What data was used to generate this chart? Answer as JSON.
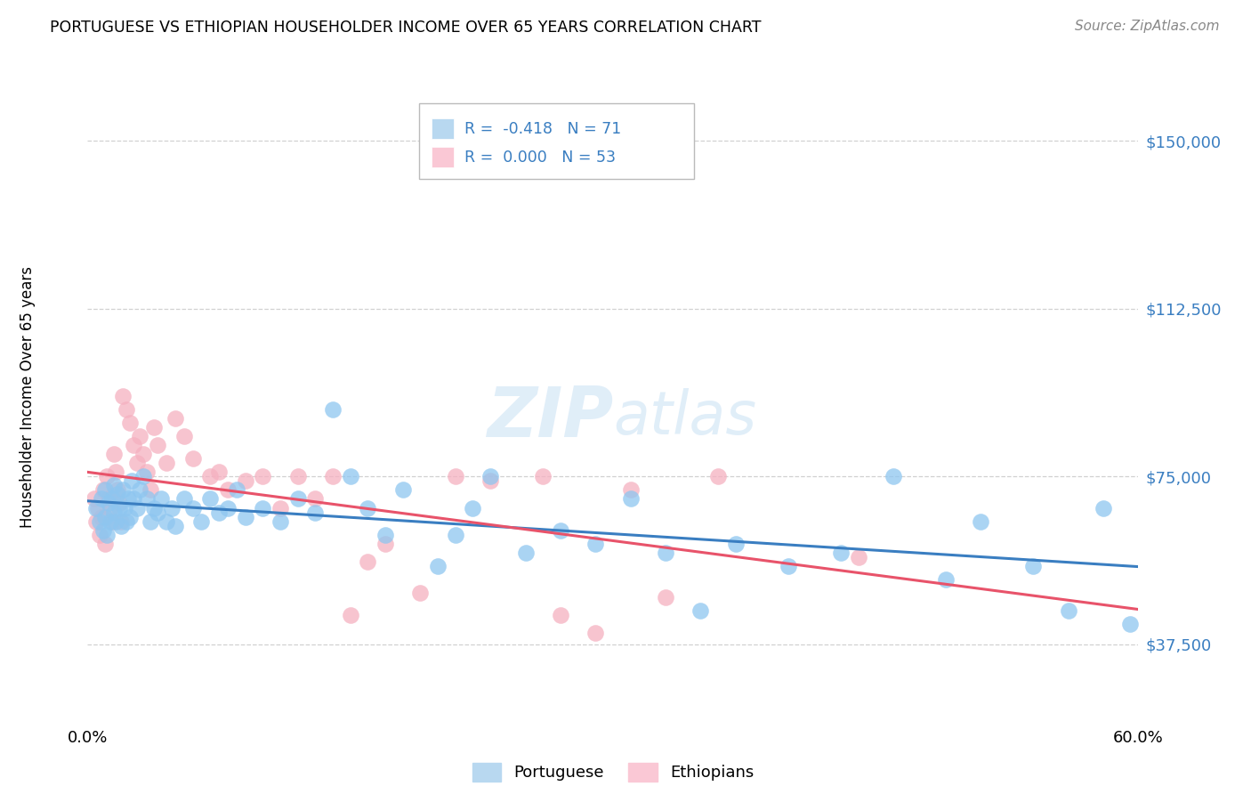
{
  "title": "PORTUGUESE VS ETHIOPIAN HOUSEHOLDER INCOME OVER 65 YEARS CORRELATION CHART",
  "source": "Source: ZipAtlas.com",
  "ylabel": "Householder Income Over 65 years",
  "ytick_labels": [
    "$37,500",
    "$75,000",
    "$112,500",
    "$150,000"
  ],
  "ytick_values": [
    37500,
    75000,
    112500,
    150000
  ],
  "ymin": 20000,
  "ymax": 162000,
  "xmin": 0.0,
  "xmax": 0.6,
  "portuguese_R": -0.418,
  "portuguese_N": 71,
  "ethiopians_R": 0.0,
  "ethiopians_N": 53,
  "portuguese_color": "#8EC6F0",
  "ethiopians_color": "#F5B0C0",
  "portuguese_line_color": "#3A7EC1",
  "ethiopians_line_color": "#E8536A",
  "background_color": "#FFFFFF",
  "grid_color": "#CCCCCC",
  "legend_box_color_portuguese": "#B8D8F0",
  "legend_box_color_ethiopians": "#FAC8D5",
  "portuguese_x": [
    0.005,
    0.007,
    0.008,
    0.009,
    0.01,
    0.01,
    0.011,
    0.012,
    0.013,
    0.014,
    0.015,
    0.015,
    0.016,
    0.017,
    0.018,
    0.019,
    0.02,
    0.021,
    0.022,
    0.023,
    0.024,
    0.025,
    0.026,
    0.028,
    0.03,
    0.032,
    0.034,
    0.036,
    0.038,
    0.04,
    0.042,
    0.045,
    0.048,
    0.05,
    0.055,
    0.06,
    0.065,
    0.07,
    0.075,
    0.08,
    0.085,
    0.09,
    0.1,
    0.11,
    0.12,
    0.13,
    0.14,
    0.15,
    0.16,
    0.17,
    0.18,
    0.2,
    0.21,
    0.22,
    0.23,
    0.25,
    0.27,
    0.29,
    0.31,
    0.33,
    0.35,
    0.37,
    0.4,
    0.43,
    0.46,
    0.49,
    0.51,
    0.54,
    0.56,
    0.58,
    0.595
  ],
  "portuguese_y": [
    68000,
    65000,
    70000,
    63000,
    72000,
    66000,
    62000,
    69000,
    65000,
    70000,
    67000,
    73000,
    65000,
    71000,
    68000,
    64000,
    72000,
    68000,
    65000,
    70000,
    66000,
    74000,
    70000,
    68000,
    72000,
    75000,
    70000,
    65000,
    68000,
    67000,
    70000,
    65000,
    68000,
    64000,
    70000,
    68000,
    65000,
    70000,
    67000,
    68000,
    72000,
    66000,
    68000,
    65000,
    70000,
    67000,
    90000,
    75000,
    68000,
    62000,
    72000,
    55000,
    62000,
    68000,
    75000,
    58000,
    63000,
    60000,
    70000,
    58000,
    45000,
    60000,
    55000,
    58000,
    75000,
    52000,
    65000,
    55000,
    45000,
    68000,
    42000
  ],
  "ethiopians_x": [
    0.004,
    0.005,
    0.006,
    0.007,
    0.008,
    0.009,
    0.01,
    0.011,
    0.012,
    0.013,
    0.014,
    0.015,
    0.016,
    0.017,
    0.018,
    0.019,
    0.02,
    0.022,
    0.024,
    0.026,
    0.028,
    0.03,
    0.032,
    0.034,
    0.036,
    0.038,
    0.04,
    0.045,
    0.05,
    0.055,
    0.06,
    0.07,
    0.075,
    0.08,
    0.09,
    0.1,
    0.11,
    0.12,
    0.13,
    0.14,
    0.15,
    0.16,
    0.17,
    0.19,
    0.21,
    0.23,
    0.26,
    0.27,
    0.29,
    0.31,
    0.33,
    0.36,
    0.44
  ],
  "ethiopians_y": [
    70000,
    65000,
    68000,
    62000,
    66000,
    72000,
    60000,
    75000,
    70000,
    68000,
    65000,
    80000,
    76000,
    72000,
    69000,
    65000,
    93000,
    90000,
    87000,
    82000,
    78000,
    84000,
    80000,
    76000,
    72000,
    86000,
    82000,
    78000,
    88000,
    84000,
    79000,
    75000,
    76000,
    72000,
    74000,
    75000,
    68000,
    75000,
    70000,
    75000,
    44000,
    56000,
    60000,
    49000,
    75000,
    74000,
    75000,
    44000,
    40000,
    72000,
    48000,
    75000,
    57000
  ]
}
